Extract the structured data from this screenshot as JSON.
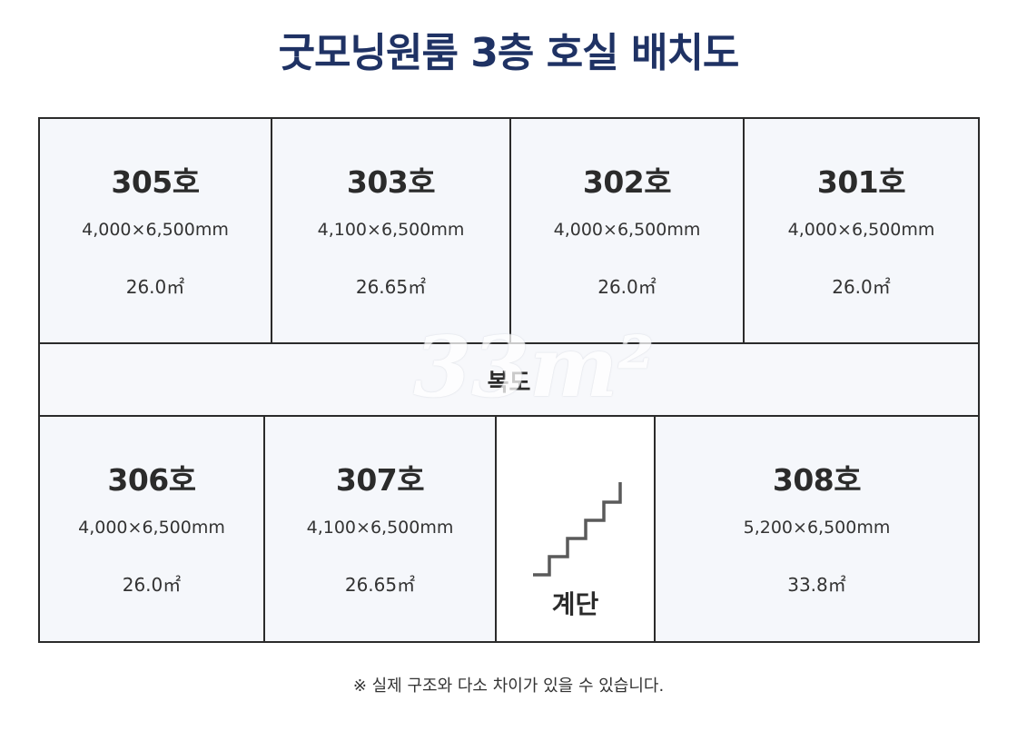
{
  "title": "굿모닝원룸 3층 호실 배치도",
  "rooms_top": [
    {
      "name": "305호",
      "dims": "4,000×6,500mm",
      "area": "26.0㎡"
    },
    {
      "name": "303호",
      "dims": "4,100×6,500mm",
      "area": "26.65㎡"
    },
    {
      "name": "302호",
      "dims": "4,000×6,500mm",
      "area": "26.0㎡"
    },
    {
      "name": "301호",
      "dims": "4,000×6,500mm",
      "area": "26.0㎡"
    }
  ],
  "corridor": {
    "label": "복도"
  },
  "rooms_bottom": [
    {
      "name": "306호",
      "dims": "4,000×6,500mm",
      "area": "26.0㎡"
    },
    {
      "name": "307호",
      "dims": "4,100×6,500mm",
      "area": "26.65㎡"
    },
    {
      "name": "308호",
      "dims": "5,200×6,500mm",
      "area": "33.8㎡"
    }
  ],
  "stairs": {
    "label": "계단",
    "icon": "stairs-icon"
  },
  "watermark": "33m²",
  "note": "※ 실제 구조와 다소 차이가 있을 수 있습니다.",
  "colors": {
    "title": "#1f3264",
    "room_fill": "#f5f7fb",
    "border": "#2b2b2b"
  }
}
